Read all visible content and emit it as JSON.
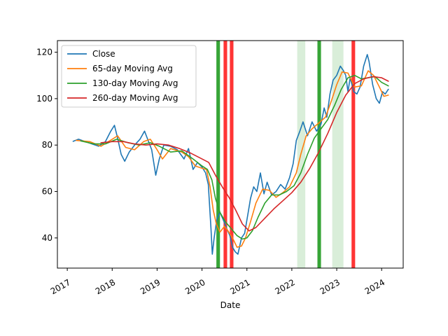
{
  "chart_data": {
    "type": "line",
    "xlabel": "Date",
    "ylabel": "",
    "xlim": [
      2016.78,
      2024.48
    ],
    "ylim": [
      27,
      125
    ],
    "x_ticks": [
      2017,
      2018,
      2019,
      2020,
      2021,
      2022,
      2023,
      2024
    ],
    "x_tick_labels": [
      "2017",
      "2018",
      "2019",
      "2020",
      "2021",
      "2022",
      "2023",
      "2024"
    ],
    "y_ticks": [
      40,
      60,
      80,
      100,
      120
    ],
    "y_tick_labels": [
      "40",
      "60",
      "80",
      "100",
      "120"
    ],
    "grid": false,
    "legend_position": "upper-left",
    "series": [
      {
        "name": "Close",
        "color": "#1f77b4",
        "points": [
          [
            2017.13,
            81.6
          ],
          [
            2017.25,
            82.5
          ],
          [
            2017.4,
            81.5
          ],
          [
            2017.55,
            80.5
          ],
          [
            2017.7,
            79.5
          ],
          [
            2017.85,
            81.5
          ],
          [
            2017.97,
            86.0
          ],
          [
            2018.05,
            88.5
          ],
          [
            2018.12,
            83.0
          ],
          [
            2018.2,
            76.0
          ],
          [
            2018.28,
            73.0
          ],
          [
            2018.38,
            77.0
          ],
          [
            2018.5,
            80.0
          ],
          [
            2018.62,
            82.5
          ],
          [
            2018.72,
            86.0
          ],
          [
            2018.8,
            82.0
          ],
          [
            2018.88,
            78.0
          ],
          [
            2018.97,
            67.0
          ],
          [
            2019.05,
            74.0
          ],
          [
            2019.15,
            80.0
          ],
          [
            2019.3,
            79.5
          ],
          [
            2019.45,
            78.0
          ],
          [
            2019.6,
            74.0
          ],
          [
            2019.7,
            78.5
          ],
          [
            2019.8,
            69.5
          ],
          [
            2019.9,
            72.5
          ],
          [
            2020.0,
            70.5
          ],
          [
            2020.08,
            68.0
          ],
          [
            2020.14,
            63.0
          ],
          [
            2020.2,
            44.0
          ],
          [
            2020.23,
            33.0
          ],
          [
            2020.27,
            40.0
          ],
          [
            2020.33,
            48.0
          ],
          [
            2020.4,
            51.0
          ],
          [
            2020.47,
            48.0
          ],
          [
            2020.55,
            44.0
          ],
          [
            2020.62,
            41.0
          ],
          [
            2020.68,
            36.0
          ],
          [
            2020.74,
            34.0
          ],
          [
            2020.8,
            33.0
          ],
          [
            2020.88,
            40.0
          ],
          [
            2020.95,
            42.0
          ],
          [
            2021.02,
            50.0
          ],
          [
            2021.08,
            57.0
          ],
          [
            2021.15,
            62.0
          ],
          [
            2021.22,
            60.0
          ],
          [
            2021.3,
            68.0
          ],
          [
            2021.38,
            59.0
          ],
          [
            2021.45,
            64.0
          ],
          [
            2021.55,
            58.5
          ],
          [
            2021.65,
            60.0
          ],
          [
            2021.75,
            63.0
          ],
          [
            2021.85,
            61.0
          ],
          [
            2021.95,
            66.0
          ],
          [
            2022.03,
            72.0
          ],
          [
            2022.1,
            82.0
          ],
          [
            2022.18,
            86.0
          ],
          [
            2022.25,
            90.0
          ],
          [
            2022.35,
            84.0
          ],
          [
            2022.45,
            90.0
          ],
          [
            2022.55,
            86.0
          ],
          [
            2022.65,
            89.0
          ],
          [
            2022.72,
            96.0
          ],
          [
            2022.78,
            92.0
          ],
          [
            2022.85,
            102.0
          ],
          [
            2022.92,
            108.0
          ],
          [
            2023.0,
            110.0
          ],
          [
            2023.08,
            114.0
          ],
          [
            2023.15,
            112.0
          ],
          [
            2023.2,
            110.0
          ],
          [
            2023.25,
            103.0
          ],
          [
            2023.3,
            109.0
          ],
          [
            2023.38,
            103.0
          ],
          [
            2023.45,
            102.0
          ],
          [
            2023.52,
            105.0
          ],
          [
            2023.6,
            114.0
          ],
          [
            2023.68,
            119.0
          ],
          [
            2023.72,
            116.0
          ],
          [
            2023.8,
            106.0
          ],
          [
            2023.88,
            100.0
          ],
          [
            2023.95,
            98.0
          ],
          [
            2024.02,
            103.0
          ],
          [
            2024.08,
            102.0
          ],
          [
            2024.15,
            104.0
          ]
        ]
      },
      {
        "name": "65-day Moving Avg",
        "color": "#ff7f0e",
        "points": [
          [
            2017.2,
            82.0
          ],
          [
            2017.5,
            81.5
          ],
          [
            2017.75,
            79.5
          ],
          [
            2018.0,
            82.5
          ],
          [
            2018.12,
            84.0
          ],
          [
            2018.3,
            79.0
          ],
          [
            2018.5,
            78.0
          ],
          [
            2018.7,
            81.5
          ],
          [
            2018.85,
            82.5
          ],
          [
            2019.0,
            78.0
          ],
          [
            2019.12,
            74.0
          ],
          [
            2019.3,
            78.5
          ],
          [
            2019.55,
            77.0
          ],
          [
            2019.7,
            75.0
          ],
          [
            2019.85,
            71.0
          ],
          [
            2020.0,
            70.0
          ],
          [
            2020.1,
            69.5
          ],
          [
            2020.18,
            62.0
          ],
          [
            2020.25,
            52.0
          ],
          [
            2020.32,
            46.0
          ],
          [
            2020.4,
            42.5
          ],
          [
            2020.5,
            45.0
          ],
          [
            2020.58,
            43.0
          ],
          [
            2020.68,
            40.0
          ],
          [
            2020.78,
            36.0
          ],
          [
            2020.88,
            36.5
          ],
          [
            2020.97,
            40.0
          ],
          [
            2021.08,
            47.0
          ],
          [
            2021.2,
            55.0
          ],
          [
            2021.35,
            61.0
          ],
          [
            2021.5,
            60.5
          ],
          [
            2021.65,
            57.5
          ],
          [
            2021.8,
            59.5
          ],
          [
            2021.95,
            62.0
          ],
          [
            2022.1,
            68.0
          ],
          [
            2022.2,
            76.0
          ],
          [
            2022.32,
            84.0
          ],
          [
            2022.45,
            87.0
          ],
          [
            2022.6,
            89.5
          ],
          [
            2022.75,
            92.0
          ],
          [
            2022.88,
            99.0
          ],
          [
            2023.0,
            106.0
          ],
          [
            2023.12,
            111.5
          ],
          [
            2023.25,
            111.0
          ],
          [
            2023.4,
            105.0
          ],
          [
            2023.55,
            105.5
          ],
          [
            2023.7,
            112.0
          ],
          [
            2023.82,
            110.0
          ],
          [
            2023.95,
            105.0
          ],
          [
            2024.05,
            101.0
          ],
          [
            2024.15,
            101.5
          ]
        ]
      },
      {
        "name": "130-day Moving Avg",
        "color": "#2ca02c",
        "points": [
          [
            2017.3,
            81.8
          ],
          [
            2017.6,
            80.5
          ],
          [
            2017.85,
            80.5
          ],
          [
            2018.1,
            82.5
          ],
          [
            2018.35,
            81.0
          ],
          [
            2018.6,
            80.0
          ],
          [
            2018.85,
            81.0
          ],
          [
            2019.05,
            79.5
          ],
          [
            2019.3,
            77.0
          ],
          [
            2019.55,
            77.5
          ],
          [
            2019.8,
            74.0
          ],
          [
            2020.0,
            71.0
          ],
          [
            2020.12,
            69.5
          ],
          [
            2020.22,
            65.0
          ],
          [
            2020.3,
            57.0
          ],
          [
            2020.4,
            51.0
          ],
          [
            2020.52,
            47.0
          ],
          [
            2020.65,
            44.0
          ],
          [
            2020.78,
            41.0
          ],
          [
            2020.9,
            39.5
          ],
          [
            2021.0,
            40.0
          ],
          [
            2021.12,
            43.0
          ],
          [
            2021.25,
            49.0
          ],
          [
            2021.4,
            55.0
          ],
          [
            2021.55,
            58.5
          ],
          [
            2021.72,
            58.5
          ],
          [
            2021.88,
            60.0
          ],
          [
            2022.05,
            62.5
          ],
          [
            2022.2,
            68.0
          ],
          [
            2022.35,
            76.0
          ],
          [
            2022.5,
            83.0
          ],
          [
            2022.65,
            87.0
          ],
          [
            2022.8,
            91.0
          ],
          [
            2022.95,
            97.0
          ],
          [
            2023.1,
            104.0
          ],
          [
            2023.25,
            109.0
          ],
          [
            2023.4,
            110.0
          ],
          [
            2023.55,
            108.5
          ],
          [
            2023.7,
            109.0
          ],
          [
            2023.85,
            109.5
          ],
          [
            2024.0,
            107.0
          ],
          [
            2024.15,
            105.5
          ]
        ]
      },
      {
        "name": "260-day Moving Avg",
        "color": "#d62728",
        "points": [
          [
            2017.75,
            81.0
          ],
          [
            2018.0,
            81.5
          ],
          [
            2018.25,
            81.5
          ],
          [
            2018.5,
            80.5
          ],
          [
            2018.75,
            80.0
          ],
          [
            2019.0,
            80.5
          ],
          [
            2019.25,
            80.0
          ],
          [
            2019.5,
            78.5
          ],
          [
            2019.75,
            76.5
          ],
          [
            2020.0,
            74.0
          ],
          [
            2020.15,
            72.5
          ],
          [
            2020.3,
            67.0
          ],
          [
            2020.45,
            62.0
          ],
          [
            2020.6,
            57.5
          ],
          [
            2020.75,
            52.0
          ],
          [
            2020.9,
            46.0
          ],
          [
            2021.05,
            43.0
          ],
          [
            2021.2,
            44.5
          ],
          [
            2021.4,
            48.5
          ],
          [
            2021.6,
            52.5
          ],
          [
            2021.8,
            56.0
          ],
          [
            2022.0,
            59.5
          ],
          [
            2022.2,
            64.0
          ],
          [
            2022.4,
            70.0
          ],
          [
            2022.6,
            77.0
          ],
          [
            2022.8,
            85.0
          ],
          [
            2023.0,
            94.0
          ],
          [
            2023.2,
            101.5
          ],
          [
            2023.4,
            106.5
          ],
          [
            2023.6,
            108.5
          ],
          [
            2023.8,
            109.5
          ],
          [
            2024.0,
            109.0
          ],
          [
            2024.15,
            107.5
          ]
        ]
      }
    ],
    "bands": [
      {
        "x0": 2022.12,
        "x1": 2022.3,
        "color": "#2ca02c",
        "opacity": 0.18
      },
      {
        "x0": 2022.9,
        "x1": 2023.15,
        "color": "#2ca02c",
        "opacity": 0.18
      },
      {
        "x0": 2020.32,
        "x1": 2020.4,
        "color": "#2ca02c",
        "opacity": 0.95
      },
      {
        "x0": 2020.48,
        "x1": 2020.56,
        "color": "#ff2a2a",
        "opacity": 0.95
      },
      {
        "x0": 2020.62,
        "x1": 2020.7,
        "color": "#ff2a2a",
        "opacity": 0.95
      },
      {
        "x0": 2022.57,
        "x1": 2022.65,
        "color": "#2ca02c",
        "opacity": 0.95
      },
      {
        "x0": 2023.33,
        "x1": 2023.41,
        "color": "#ff2a2a",
        "opacity": 0.95
      }
    ]
  }
}
